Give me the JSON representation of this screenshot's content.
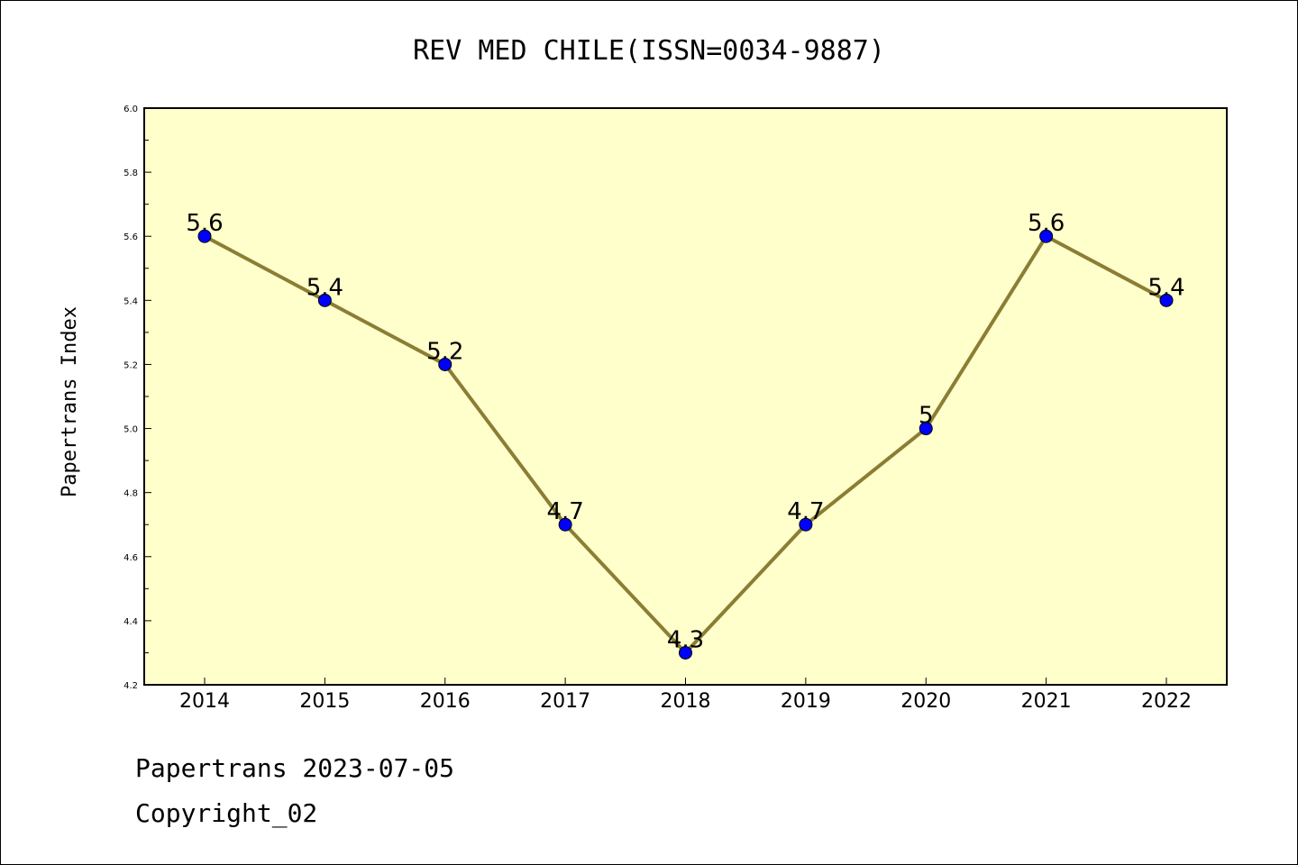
{
  "chart_data": {
    "type": "line",
    "title": "REV MED CHILE(ISSN=0034-9887)",
    "ylabel": "Papertrans Index",
    "xlabel": "",
    "categories": [
      "2014",
      "2015",
      "2016",
      "2017",
      "2018",
      "2019",
      "2020",
      "2021",
      "2022"
    ],
    "series": [
      {
        "values": [
          5.6,
          5.4,
          5.2,
          4.7,
          4.3,
          4.7,
          5.0,
          5.6,
          5.4
        ],
        "data_labels": [
          "5.6",
          "5.4",
          "5.2",
          "4.7",
          "4.3",
          "4.7",
          "5",
          "5.6",
          "5.4"
        ]
      }
    ],
    "ylim": [
      4.2,
      6.0
    ],
    "yticks": [
      "4.2",
      "4.4",
      "4.6",
      "4.8",
      "5.0",
      "5.2",
      "5.4",
      "5.6",
      "5.8",
      "6.0"
    ],
    "grid": false,
    "colors": {
      "plot_background": "#ffffcc",
      "line": "#8b7d33",
      "marker": "#0000ff"
    }
  },
  "footer": {
    "line1": "Papertrans 2023-07-05",
    "line2": "Copyright_02"
  }
}
